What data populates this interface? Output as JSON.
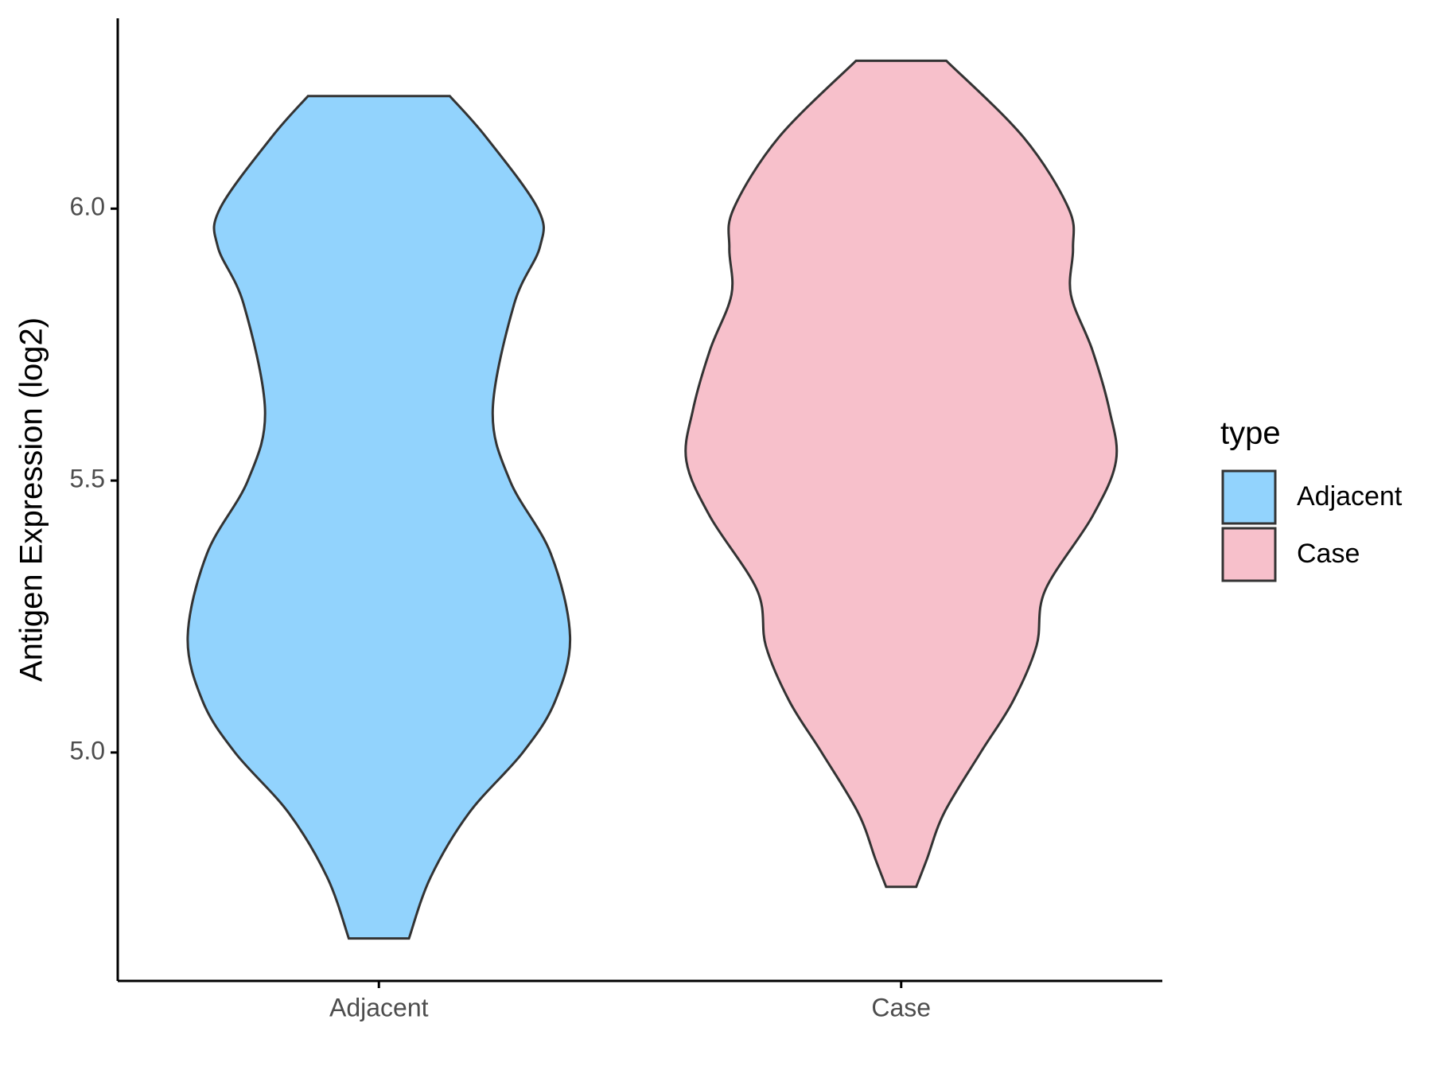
{
  "chart_data": {
    "type": "violin",
    "ylabel": "Antigen Expression (log2)",
    "categories": [
      "Adjacent",
      "Case"
    ],
    "ylim": [
      4.58,
      6.35
    ],
    "yticks": [
      {
        "value": 5,
        "label": "5.0"
      },
      {
        "value": 5.5,
        "label": "5.5"
      },
      {
        "value": 6,
        "label": "6.0"
      }
    ],
    "legend_title": "type",
    "series": [
      {
        "name": "Adjacent",
        "color": "#92d3fd",
        "y": [
          6.207,
          6.131,
          6.0,
          5.93,
          5.825,
          5.629,
          5.5,
          5.366,
          5.213,
          5.094,
          5.0,
          4.889,
          4.77,
          4.658
        ],
        "density": [
          0.33,
          0.5,
          0.74,
          0.75,
          0.63,
          0.53,
          0.61,
          0.8,
          0.89,
          0.82,
          0.67,
          0.42,
          0.24,
          0.14
        ]
      },
      {
        "name": "Case",
        "color": "#f7c0cb",
        "y": [
          6.272,
          6.131,
          6.0,
          5.927,
          5.842,
          5.74,
          5.629,
          5.536,
          5.434,
          5.298,
          5.196,
          5.094,
          5.0,
          4.889,
          4.804,
          4.753
        ],
        "density": [
          0.21,
          0.57,
          0.78,
          0.8,
          0.79,
          0.89,
          0.97,
          1.0,
          0.89,
          0.67,
          0.63,
          0.52,
          0.37,
          0.2,
          0.12,
          0.07
        ]
      }
    ]
  }
}
